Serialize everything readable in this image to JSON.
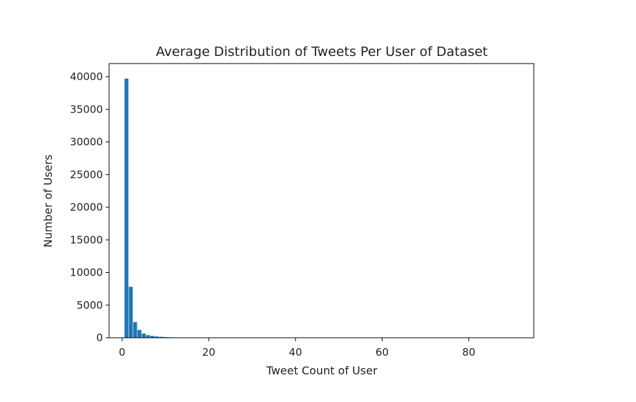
{
  "chart_data": {
    "type": "bar",
    "title": "Average Distribution of Tweets Per User of Dataset",
    "xlabel": "Tweet Count of User",
    "ylabel": "Number of Users",
    "xlim": [
      -3,
      95
    ],
    "ylim": [
      0,
      40000
    ],
    "xticks": [
      0,
      20,
      40,
      60,
      80
    ],
    "yticks": [
      0,
      5000,
      10000,
      15000,
      20000,
      25000,
      30000,
      35000,
      40000
    ],
    "bin_width": 0.9,
    "bins": [
      {
        "x": 1,
        "count": 39700
      },
      {
        "x": 2,
        "count": 7800
      },
      {
        "x": 3,
        "count": 2400
      },
      {
        "x": 4,
        "count": 1200
      },
      {
        "x": 5,
        "count": 650
      },
      {
        "x": 6,
        "count": 400
      },
      {
        "x": 7,
        "count": 280
      },
      {
        "x": 8,
        "count": 200
      },
      {
        "x": 9,
        "count": 150
      },
      {
        "x": 10,
        "count": 110
      },
      {
        "x": 11,
        "count": 80
      },
      {
        "x": 12,
        "count": 60
      },
      {
        "x": 13,
        "count": 45
      },
      {
        "x": 14,
        "count": 35
      },
      {
        "x": 15,
        "count": 25
      },
      {
        "x": 16,
        "count": 20
      },
      {
        "x": 17,
        "count": 15
      },
      {
        "x": 18,
        "count": 12
      },
      {
        "x": 19,
        "count": 10
      },
      {
        "x": 20,
        "count": 8
      }
    ],
    "bar_color": "#1f77b4",
    "grid": false,
    "legend": false
  }
}
